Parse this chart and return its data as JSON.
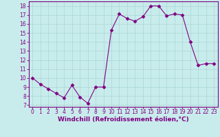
{
  "x": [
    0,
    1,
    2,
    3,
    4,
    5,
    6,
    7,
    8,
    9,
    10,
    11,
    12,
    13,
    14,
    15,
    16,
    17,
    18,
    19,
    20,
    21,
    22,
    23
  ],
  "y": [
    10.0,
    9.3,
    8.8,
    8.3,
    7.8,
    9.2,
    7.9,
    7.2,
    9.0,
    9.0,
    15.3,
    17.1,
    16.6,
    16.3,
    16.8,
    18.0,
    18.0,
    16.9,
    17.1,
    17.0,
    14.0,
    11.4,
    11.6,
    11.6
  ],
  "line_color": "#800080",
  "marker": "D",
  "marker_size": 2.5,
  "background_color": "#c8ecec",
  "grid_color": "#b0d8d8",
  "xlabel": "Windchill (Refroidissement éolien,°C)",
  "xlim": [
    -0.5,
    23.5
  ],
  "ylim": [
    6.8,
    18.5
  ],
  "yticks": [
    7,
    8,
    9,
    10,
    11,
    12,
    13,
    14,
    15,
    16,
    17,
    18
  ],
  "xticks": [
    0,
    1,
    2,
    3,
    4,
    5,
    6,
    7,
    8,
    9,
    10,
    11,
    12,
    13,
    14,
    15,
    16,
    17,
    18,
    19,
    20,
    21,
    22,
    23
  ],
  "tick_color": "#800080",
  "tick_fontsize": 5.5,
  "xlabel_fontsize": 6.5,
  "xlabel_color": "#800080",
  "spine_color": "#800080",
  "axis_color": "#800080"
}
